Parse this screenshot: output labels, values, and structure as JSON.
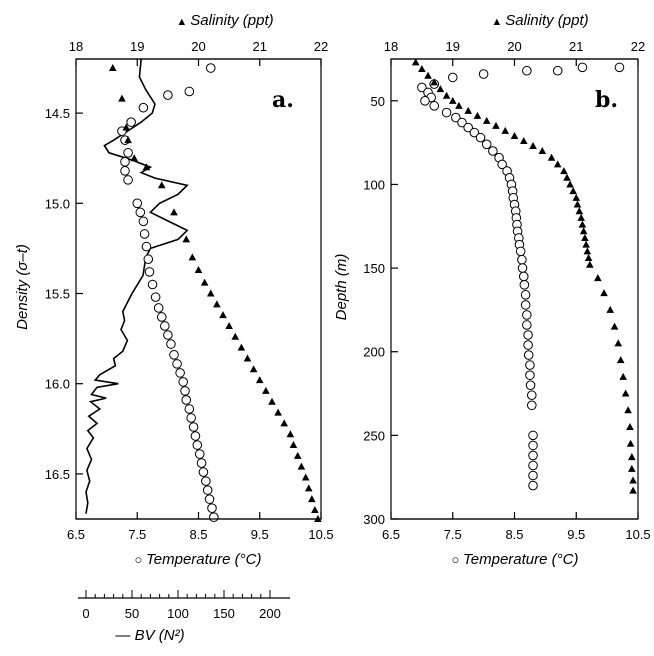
{
  "chart_data": [
    {
      "panel": "a.",
      "type": "scatter",
      "y_axis": {
        "label": "Density (σ–t)",
        "ticks": [
          "14.5",
          "15.0",
          "15.5",
          "16.0",
          "16.5"
        ],
        "range": [
          14.2,
          16.75
        ]
      },
      "temperature_axis": {
        "label": "Temperature (°C)",
        "ticks": [
          "6.5",
          "7.5",
          "8.5",
          "9.5",
          "10.5"
        ],
        "range": [
          6.5,
          10.5
        ]
      },
      "salinity_axis": {
        "label": "Salinity (ppt)",
        "ticks": [
          "18",
          "19",
          "20",
          "21",
          "22"
        ],
        "range": [
          18,
          22
        ]
      },
      "bv_axis": {
        "label": "BV (N²)",
        "ticks": [
          "0",
          "50",
          "100",
          "150",
          "200"
        ],
        "range": [
          -8,
          225
        ]
      },
      "series": [
        {
          "name": "Temperature (°C)",
          "marker": "open-circle",
          "axis": "temperature",
          "points": [
            [
              8.7,
              14.25
            ],
            [
              8.35,
              14.38
            ],
            [
              8.0,
              14.4
            ],
            [
              7.6,
              14.47
            ],
            [
              7.4,
              14.55
            ],
            [
              7.25,
              14.6
            ],
            [
              7.3,
              14.65
            ],
            [
              7.35,
              14.72
            ],
            [
              7.3,
              14.77
            ],
            [
              7.3,
              14.82
            ],
            [
              7.35,
              14.87
            ],
            [
              7.5,
              15.0
            ],
            [
              7.55,
              15.05
            ],
            [
              7.6,
              15.1
            ],
            [
              7.62,
              15.17
            ],
            [
              7.65,
              15.24
            ],
            [
              7.68,
              15.31
            ],
            [
              7.7,
              15.38
            ],
            [
              7.75,
              15.45
            ],
            [
              7.8,
              15.52
            ],
            [
              7.85,
              15.58
            ],
            [
              7.9,
              15.63
            ],
            [
              7.95,
              15.68
            ],
            [
              8.0,
              15.73
            ],
            [
              8.05,
              15.78
            ],
            [
              8.1,
              15.84
            ],
            [
              8.15,
              15.89
            ],
            [
              8.2,
              15.94
            ],
            [
              8.25,
              15.99
            ],
            [
              8.28,
              16.04
            ],
            [
              8.3,
              16.09
            ],
            [
              8.35,
              16.14
            ],
            [
              8.38,
              16.19
            ],
            [
              8.42,
              16.24
            ],
            [
              8.45,
              16.29
            ],
            [
              8.48,
              16.34
            ],
            [
              8.52,
              16.39
            ],
            [
              8.55,
              16.44
            ],
            [
              8.58,
              16.49
            ],
            [
              8.62,
              16.54
            ],
            [
              8.65,
              16.59
            ],
            [
              8.68,
              16.64
            ],
            [
              8.72,
              16.69
            ],
            [
              8.75,
              16.74
            ]
          ]
        },
        {
          "name": "Salinity (ppt)",
          "marker": "filled-triangle",
          "axis": "salinity",
          "points": [
            [
              18.6,
              14.25
            ],
            [
              18.75,
              14.42
            ],
            [
              18.82,
              14.58
            ],
            [
              18.85,
              14.65
            ],
            [
              18.95,
              14.75
            ],
            [
              19.15,
              14.8
            ],
            [
              19.4,
              14.9
            ],
            [
              19.6,
              15.05
            ],
            [
              19.8,
              15.2
            ],
            [
              19.9,
              15.3
            ],
            [
              20.0,
              15.37
            ],
            [
              20.1,
              15.44
            ],
            [
              20.2,
              15.5
            ],
            [
              20.3,
              15.56
            ],
            [
              20.4,
              15.62
            ],
            [
              20.5,
              15.68
            ],
            [
              20.6,
              15.74
            ],
            [
              20.7,
              15.8
            ],
            [
              20.8,
              15.86
            ],
            [
              20.9,
              15.92
            ],
            [
              21.0,
              15.98
            ],
            [
              21.1,
              16.04
            ],
            [
              21.2,
              16.1
            ],
            [
              21.3,
              16.16
            ],
            [
              21.4,
              16.22
            ],
            [
              21.5,
              16.28
            ],
            [
              21.55,
              16.34
            ],
            [
              21.62,
              16.4
            ],
            [
              21.68,
              16.46
            ],
            [
              21.75,
              16.52
            ],
            [
              21.8,
              16.58
            ],
            [
              21.85,
              16.64
            ],
            [
              21.9,
              16.7
            ],
            [
              21.95,
              16.75
            ]
          ]
        },
        {
          "name": "BV (N²)",
          "marker": "line",
          "axis": "bv",
          "points": [
            [
              60,
              14.2
            ],
            [
              58,
              14.3
            ],
            [
              65,
              14.37
            ],
            [
              75,
              14.45
            ],
            [
              72,
              14.5
            ],
            [
              60,
              14.55
            ],
            [
              45,
              14.6
            ],
            [
              30,
              14.65
            ],
            [
              20,
              14.68
            ],
            [
              25,
              14.72
            ],
            [
              50,
              14.76
            ],
            [
              70,
              14.8
            ],
            [
              60,
              14.83
            ],
            [
              75,
              14.86
            ],
            [
              110,
              14.9
            ],
            [
              100,
              14.95
            ],
            [
              80,
              15.0
            ],
            [
              70,
              15.05
            ],
            [
              90,
              15.1
            ],
            [
              110,
              15.15
            ],
            [
              100,
              15.2
            ],
            [
              70,
              15.25
            ],
            [
              65,
              15.3
            ],
            [
              62,
              15.4
            ],
            [
              50,
              15.5
            ],
            [
              45,
              15.55
            ],
            [
              40,
              15.6
            ],
            [
              42,
              15.65
            ],
            [
              38,
              15.7
            ],
            [
              45,
              15.76
            ],
            [
              40,
              15.82
            ],
            [
              30,
              15.86
            ],
            [
              32,
              15.9
            ],
            [
              15,
              15.95
            ],
            [
              10,
              15.98
            ],
            [
              35,
              16.0
            ],
            [
              12,
              16.02
            ],
            [
              6,
              16.06
            ],
            [
              22,
              16.08
            ],
            [
              5,
              16.1
            ],
            [
              15,
              16.14
            ],
            [
              3,
              16.18
            ],
            [
              12,
              16.22
            ],
            [
              2,
              16.26
            ],
            [
              8,
              16.3
            ],
            [
              1,
              16.36
            ],
            [
              6,
              16.42
            ],
            [
              1,
              16.48
            ],
            [
              4,
              16.54
            ],
            [
              0,
              16.6
            ],
            [
              2,
              16.66
            ],
            [
              0,
              16.72
            ]
          ]
        }
      ]
    },
    {
      "panel": "b.",
      "type": "scatter",
      "y_axis": {
        "label": "Depth (m)",
        "ticks": [
          "50",
          "100",
          "150",
          "200",
          "250",
          "300"
        ],
        "range": [
          25,
          300
        ]
      },
      "temperature_axis": {
        "label": "Temperature (°C)",
        "ticks": [
          "6.5",
          "7.5",
          "8.5",
          "9.5",
          "10.5"
        ],
        "range": [
          6.5,
          10.5
        ]
      },
      "salinity_axis": {
        "label": "Salinity (ppt)",
        "ticks": [
          "18",
          "19",
          "20",
          "21",
          "22"
        ],
        "range": [
          18,
          22
        ]
      },
      "series": [
        {
          "name": "Temperature (°C)",
          "marker": "open-circle",
          "axis": "temperature",
          "points": [
            [
              10.2,
              30
            ],
            [
              9.6,
              30
            ],
            [
              9.2,
              32
            ],
            [
              8.7,
              32
            ],
            [
              8.0,
              34
            ],
            [
              7.5,
              36
            ],
            [
              7.2,
              40
            ],
            [
              7.0,
              42
            ],
            [
              7.1,
              45
            ],
            [
              7.15,
              48
            ],
            [
              7.05,
              50
            ],
            [
              7.2,
              53
            ],
            [
              7.4,
              57
            ],
            [
              7.55,
              60
            ],
            [
              7.65,
              63
            ],
            [
              7.75,
              66
            ],
            [
              7.85,
              69
            ],
            [
              7.95,
              72
            ],
            [
              8.05,
              76
            ],
            [
              8.15,
              80
            ],
            [
              8.25,
              84
            ],
            [
              8.3,
              88
            ],
            [
              8.38,
              92
            ],
            [
              8.42,
              96
            ],
            [
              8.45,
              100
            ],
            [
              8.47,
              104
            ],
            [
              8.48,
              108
            ],
            [
              8.5,
              112
            ],
            [
              8.52,
              116
            ],
            [
              8.53,
              120
            ],
            [
              8.54,
              124
            ],
            [
              8.55,
              128
            ],
            [
              8.57,
              132
            ],
            [
              8.58,
              136
            ],
            [
              8.6,
              140
            ],
            [
              8.62,
              145
            ],
            [
              8.63,
              150
            ],
            [
              8.65,
              155
            ],
            [
              8.66,
              160
            ],
            [
              8.68,
              166
            ],
            [
              8.68,
              172
            ],
            [
              8.7,
              178
            ],
            [
              8.7,
              184
            ],
            [
              8.72,
              190
            ],
            [
              8.72,
              196
            ],
            [
              8.73,
              202
            ],
            [
              8.75,
              208
            ],
            [
              8.75,
              214
            ],
            [
              8.76,
              220
            ],
            [
              8.78,
              226
            ],
            [
              8.78,
              232
            ],
            [
              8.8,
              250
            ],
            [
              8.8,
              256
            ],
            [
              8.8,
              262
            ],
            [
              8.8,
              268
            ],
            [
              8.8,
              274
            ],
            [
              8.8,
              280
            ]
          ]
        },
        {
          "name": "Salinity (ppt)",
          "marker": "filled-triangle",
          "axis": "salinity",
          "points": [
            [
              18.4,
              27
            ],
            [
              18.5,
              31
            ],
            [
              18.6,
              35
            ],
            [
              18.7,
              39
            ],
            [
              18.8,
              43
            ],
            [
              18.9,
              47
            ],
            [
              19.0,
              50
            ],
            [
              19.1,
              53
            ],
            [
              19.25,
              56
            ],
            [
              19.4,
              59
            ],
            [
              19.55,
              62
            ],
            [
              19.7,
              65
            ],
            [
              19.85,
              68
            ],
            [
              20.0,
              71
            ],
            [
              20.15,
              74
            ],
            [
              20.3,
              77
            ],
            [
              20.45,
              80
            ],
            [
              20.6,
              84
            ],
            [
              20.7,
              88
            ],
            [
              20.8,
              92
            ],
            [
              20.85,
              96
            ],
            [
              20.9,
              100
            ],
            [
              20.95,
              104
            ],
            [
              21.0,
              108
            ],
            [
              21.02,
              112
            ],
            [
              21.05,
              116
            ],
            [
              21.08,
              120
            ],
            [
              21.1,
              124
            ],
            [
              21.12,
              128
            ],
            [
              21.14,
              132
            ],
            [
              21.16,
              136
            ],
            [
              21.18,
              140
            ],
            [
              21.2,
              144
            ],
            [
              21.22,
              148
            ],
            [
              21.35,
              156
            ],
            [
              21.45,
              165
            ],
            [
              21.55,
              175
            ],
            [
              21.62,
              185
            ],
            [
              21.68,
              195
            ],
            [
              21.72,
              205
            ],
            [
              21.76,
              215
            ],
            [
              21.8,
              225
            ],
            [
              21.84,
              235
            ],
            [
              21.87,
              245
            ],
            [
              21.88,
              255
            ],
            [
              21.9,
              263
            ],
            [
              21.9,
              270
            ],
            [
              21.92,
              277
            ],
            [
              21.92,
              283
            ]
          ]
        }
      ]
    }
  ]
}
